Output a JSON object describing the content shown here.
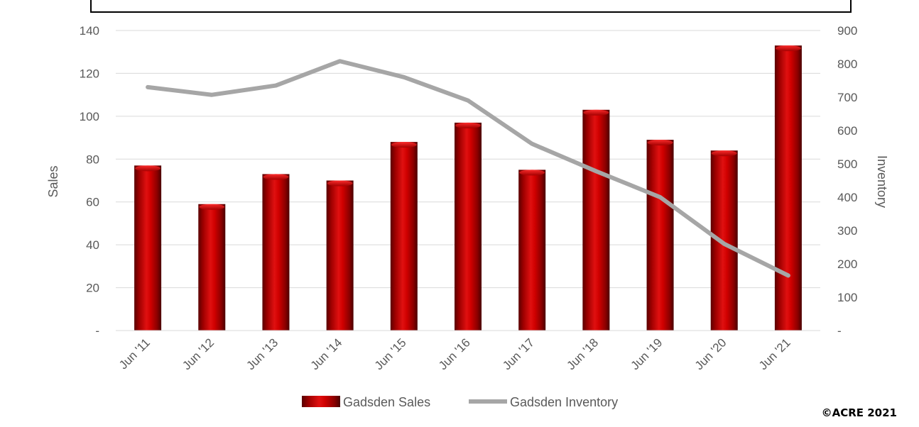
{
  "chart_data": {
    "type": "bar",
    "categories": [
      "Jun '11",
      "Jun '12",
      "Jun '13",
      "Jun '14",
      "Jun '15",
      "Jun '16",
      "Jun '17",
      "Jun '18",
      "Jun '19",
      "Jun '20",
      "Jun '21"
    ],
    "series": [
      {
        "name": "Gadsden Sales",
        "type": "bar",
        "axis": "left",
        "color": "#c00000",
        "values": [
          77,
          59,
          73,
          70,
          88,
          97,
          75,
          103,
          89,
          84,
          133
        ]
      },
      {
        "name": "Gadsden Inventory",
        "type": "line",
        "axis": "right",
        "color": "#a6a6a6",
        "values": [
          730,
          707,
          735,
          808,
          760,
          690,
          560,
          478,
          400,
          260,
          165
        ]
      }
    ],
    "ylabel": "Sales",
    "y2label": "Inventory",
    "ylim": [
      0,
      140
    ],
    "y2lim": [
      0,
      900
    ],
    "yticks": [
      "-",
      "20",
      "40",
      "60",
      "80",
      "100",
      "120",
      "140"
    ],
    "y2ticks": [
      "-",
      "100",
      "200",
      "300",
      "400",
      "500",
      "600",
      "700",
      "800",
      "900"
    ],
    "grid": true,
    "legend_position": "bottom"
  },
  "footer": {
    "copyright": "©ACRE 2021"
  }
}
